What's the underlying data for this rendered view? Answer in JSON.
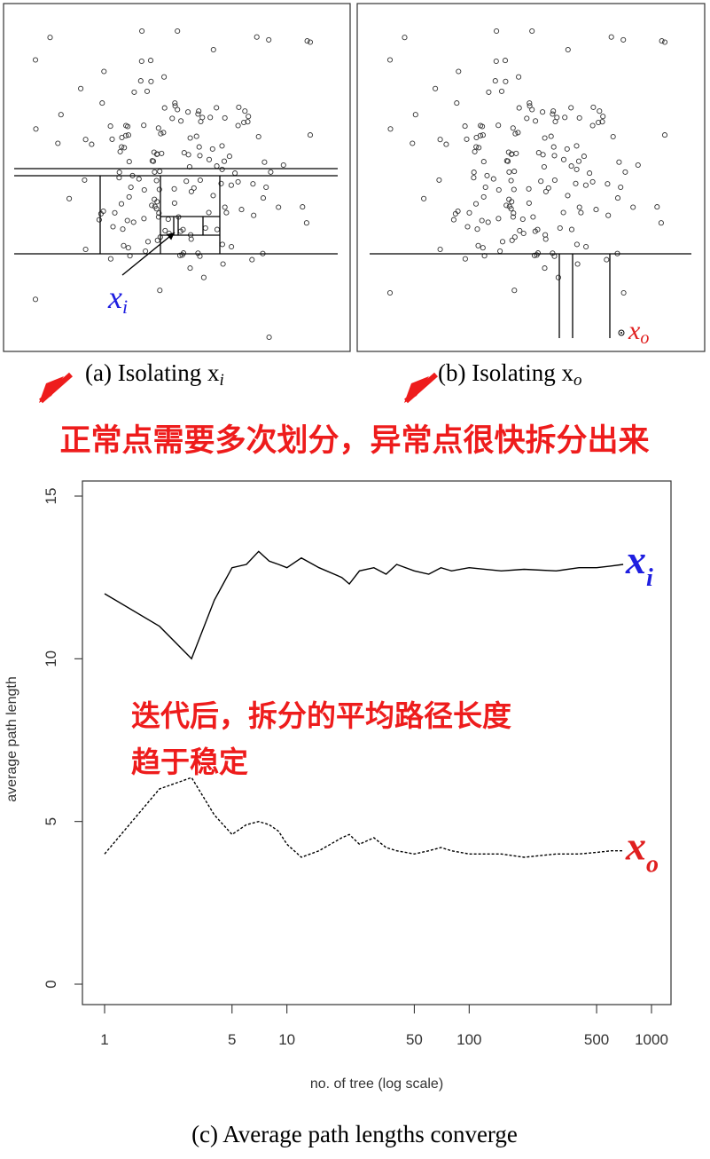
{
  "panel_a": {
    "caption": "(a) Isolating x",
    "caption_sub": "i",
    "point_label": "x",
    "point_sub": "i",
    "label_color": "#1f1fe0"
  },
  "panel_b": {
    "caption": "(b) Isolating x",
    "caption_sub": "o",
    "point_label": "x",
    "point_sub": "o",
    "label_color": "#e01f1f"
  },
  "annotations": {
    "top_note": "正常点需要多次划分，异常点很快拆分出来",
    "chart_note_line1": "迭代后，拆分的平均路径长度",
    "chart_note_line2": "趋于稳定",
    "color": "#ee1c1c"
  },
  "chart_caption": "(c) Average path lengths converge",
  "chart_data": {
    "type": "line",
    "xlabel": "no. of tree (log scale)",
    "ylabel": "average path length",
    "x_scale": "log",
    "xlim": [
      1,
      1000
    ],
    "ylim": [
      0,
      15
    ],
    "x_ticks": [
      1,
      5,
      10,
      50,
      100,
      500,
      1000
    ],
    "y_ticks": [
      0,
      5,
      10,
      15
    ],
    "series": [
      {
        "name": "x_i",
        "label": "x",
        "label_sub": "i",
        "color": "#1f1fe0",
        "style": "solid",
        "x": [
          1,
          2,
          3,
          4,
          5,
          6,
          7,
          8,
          9,
          10,
          12,
          15,
          20,
          22,
          25,
          30,
          35,
          40,
          50,
          60,
          70,
          80,
          100,
          150,
          200,
          300,
          400,
          500,
          600,
          700
        ],
        "y": [
          12.0,
          11.0,
          10.0,
          11.8,
          12.8,
          12.9,
          13.3,
          13.0,
          12.9,
          12.8,
          13.1,
          12.8,
          12.5,
          12.3,
          12.7,
          12.8,
          12.6,
          12.9,
          12.7,
          12.6,
          12.8,
          12.7,
          12.8,
          12.7,
          12.75,
          12.7,
          12.8,
          12.8,
          12.85,
          12.9
        ]
      },
      {
        "name": "x_o",
        "label": "x",
        "label_sub": "o",
        "color": "#e01f1f",
        "style": "dashed",
        "x": [
          1,
          2,
          3,
          4,
          5,
          6,
          7,
          8,
          9,
          10,
          12,
          15,
          20,
          22,
          25,
          30,
          35,
          40,
          50,
          60,
          70,
          80,
          100,
          150,
          200,
          300,
          400,
          500,
          600,
          700
        ],
        "y": [
          4.0,
          6.0,
          6.35,
          5.2,
          4.6,
          4.9,
          5.0,
          4.9,
          4.7,
          4.3,
          3.9,
          4.1,
          4.5,
          4.6,
          4.3,
          4.5,
          4.2,
          4.1,
          4.0,
          4.1,
          4.2,
          4.1,
          4.0,
          4.0,
          3.9,
          4.0,
          4.0,
          4.05,
          4.1,
          4.1
        ]
      }
    ]
  }
}
